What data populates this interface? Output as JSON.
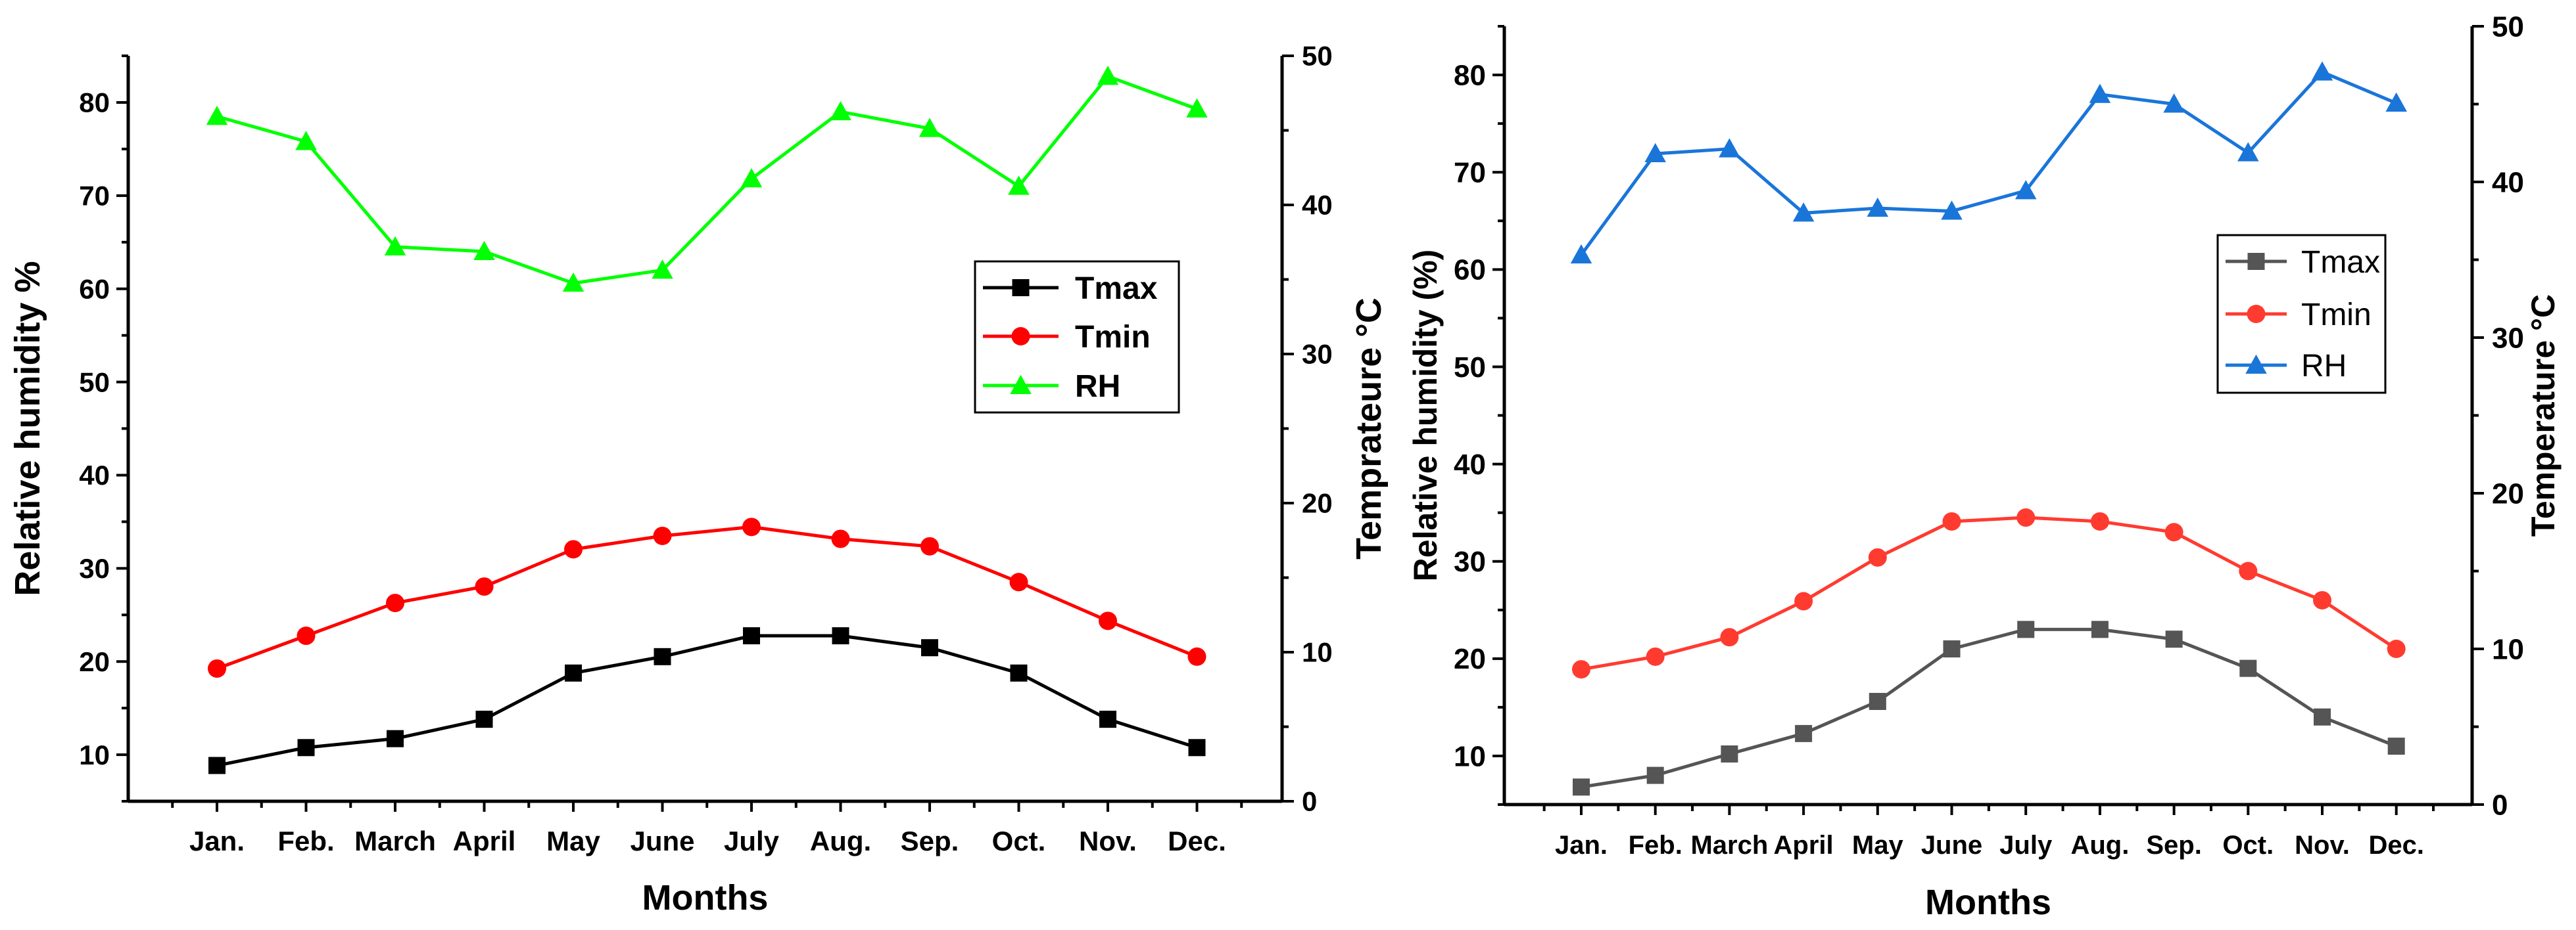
{
  "chart_data": [
    {
      "type": "line",
      "categories": [
        "Jan.",
        "Feb.",
        "March",
        "April",
        "May",
        "June",
        "July",
        "Aug.",
        "Sep.",
        "Oct.",
        "Nov.",
        "Dec."
      ],
      "xlabel": "Months",
      "ylabel": "Relative humidity %",
      "y2label": "Temprateure °C",
      "ylim": [
        5,
        85
      ],
      "y2lim": [
        0,
        50
      ],
      "yticks": [
        10,
        20,
        30,
        40,
        50,
        60,
        70,
        80
      ],
      "y2ticks": [
        0,
        10,
        20,
        30,
        40,
        50
      ],
      "legend_position": "center-right",
      "series": [
        {
          "name": "Tmax",
          "axis": "right",
          "color": "#000000",
          "marker": "square",
          "values": [
            2.4,
            3.6,
            4.2,
            5.5,
            8.6,
            9.7,
            11.1,
            11.1,
            10.3,
            8.6,
            5.5,
            3.6
          ]
        },
        {
          "name": "Tmin",
          "axis": "right",
          "color": "#ff0000",
          "marker": "circle",
          "values": [
            8.9,
            11.1,
            13.3,
            14.4,
            16.9,
            17.8,
            18.4,
            17.6,
            17.1,
            14.7,
            12.1,
            9.7
          ]
        },
        {
          "name": "RH",
          "axis": "left",
          "color": "#00ff00",
          "marker": "triangle",
          "values": [
            78.5,
            75.8,
            64.5,
            64.0,
            60.6,
            62.0,
            71.8,
            79.0,
            77.2,
            71.0,
            82.8,
            79.3
          ]
        }
      ]
    },
    {
      "type": "line",
      "categories": [
        "Jan.",
        "Feb.",
        "March",
        "April",
        "May",
        "June",
        "July",
        "Aug.",
        "Sep.",
        "Oct.",
        "Nov.",
        "Dec."
      ],
      "xlabel": "Months",
      "ylabel": "Relative humidity (%)",
      "y2label": "Temperature °C",
      "ylim": [
        5,
        85
      ],
      "y2lim": [
        0,
        50
      ],
      "yticks": [
        10,
        20,
        30,
        40,
        50,
        60,
        70,
        80
      ],
      "y2ticks": [
        0,
        10,
        20,
        30,
        40,
        50
      ],
      "legend_position": "center-right",
      "series": [
        {
          "name": "Tmax",
          "axis": "left",
          "color": "#555555",
          "marker": "square",
          "values": [
            6.8,
            8.0,
            10.2,
            12.3,
            15.6,
            21.0,
            23.0,
            23.0,
            22.0,
            19.0,
            14.0,
            11.0
          ]
        },
        {
          "name": "Tmin",
          "axis": "left",
          "color": "#ff3b30",
          "marker": "circle",
          "values": [
            18.9,
            20.2,
            22.2,
            25.9,
            30.4,
            34.1,
            34.5,
            34.1,
            33.0,
            29.0,
            26.0,
            21.0
          ]
        },
        {
          "name": "RH",
          "axis": "left",
          "color": "#1a75d9",
          "marker": "triangle",
          "values": [
            61.5,
            71.9,
            72.4,
            65.8,
            66.3,
            66.0,
            68.1,
            78.0,
            77.0,
            72.0,
            80.3,
            77.1
          ]
        }
      ]
    }
  ]
}
